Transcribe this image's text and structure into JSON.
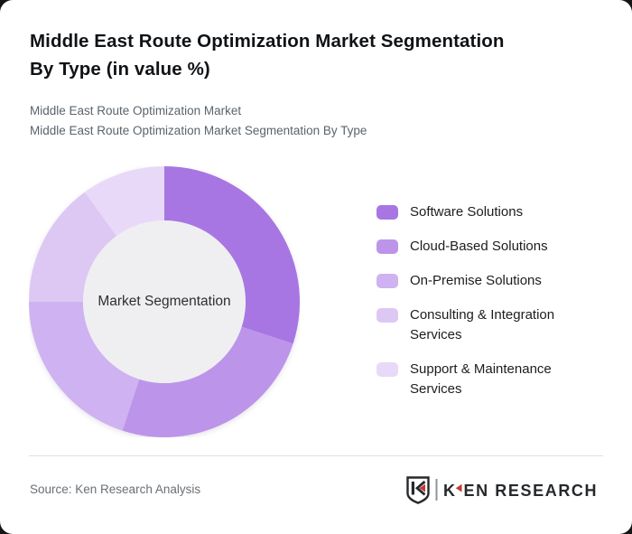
{
  "page": {
    "background_color": "#151515",
    "card_background_color": "#ffffff"
  },
  "header": {
    "title": "Middle East Route Optimization Market Segmentation\nBy Type (in value %)",
    "subtitle_lines": [
      "Middle East Route Optimization Market",
      "Middle East Route Optimization Market Segmentation By Type"
    ]
  },
  "chart_data": {
    "type": "pie",
    "variant": "donut",
    "title": "Middle East Route Optimization Market Segmentation By Type (in value %)",
    "unit": "value %",
    "center_label": "Market Segmentation",
    "start_angle_deg": 0,
    "direction": "clockwise",
    "categories": [
      "Software Solutions",
      "Cloud-Based Solutions",
      "On-Premise Solutions",
      "Consulting & Integration Services",
      "Support & Maintenance Services"
    ],
    "values": [
      30,
      25,
      20,
      15,
      10
    ],
    "colors": [
      "#a876e2",
      "#bc95ea",
      "#cfb2f1",
      "#ddc8f4",
      "#e9d9f8"
    ],
    "center_circle_color": "#efeff1",
    "center_label_color": "#2c2f33",
    "legend_position": "right",
    "outer_radius_px": 150,
    "inner_radius_px": 90
  },
  "footer": {
    "source": "Source: Ken Research Analysis",
    "logo": {
      "brand": "KEN RESEARCH",
      "icon": "ken-research-shield-k-icon",
      "accent_color": "#c23a32",
      "text_color": "#26292c",
      "separator_color": "#8e9499"
    }
  }
}
